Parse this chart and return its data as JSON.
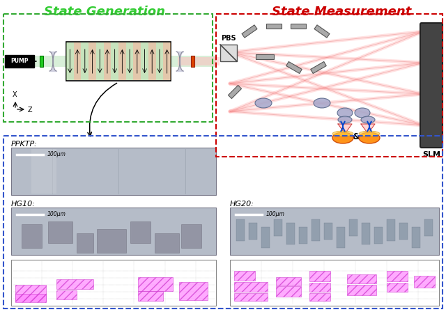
{
  "title_left": "State Generation",
  "title_right": "State Measurement",
  "title_left_color": "#33cc33",
  "title_right_color": "#cc0000",
  "title_fontsize": 13,
  "bg_color": "#ffffff",
  "green_box_color": "#33aa33",
  "red_box_color": "#cc0000",
  "blue_box_color": "#3355cc",
  "ppktp_label": "PPKTP:",
  "hg10_label": "HG10:",
  "hg20_label": "HG20:",
  "scale_label": "100μm",
  "slm_label": "SLM",
  "pbs_label": "PBS",
  "pump_label": "PUMP"
}
